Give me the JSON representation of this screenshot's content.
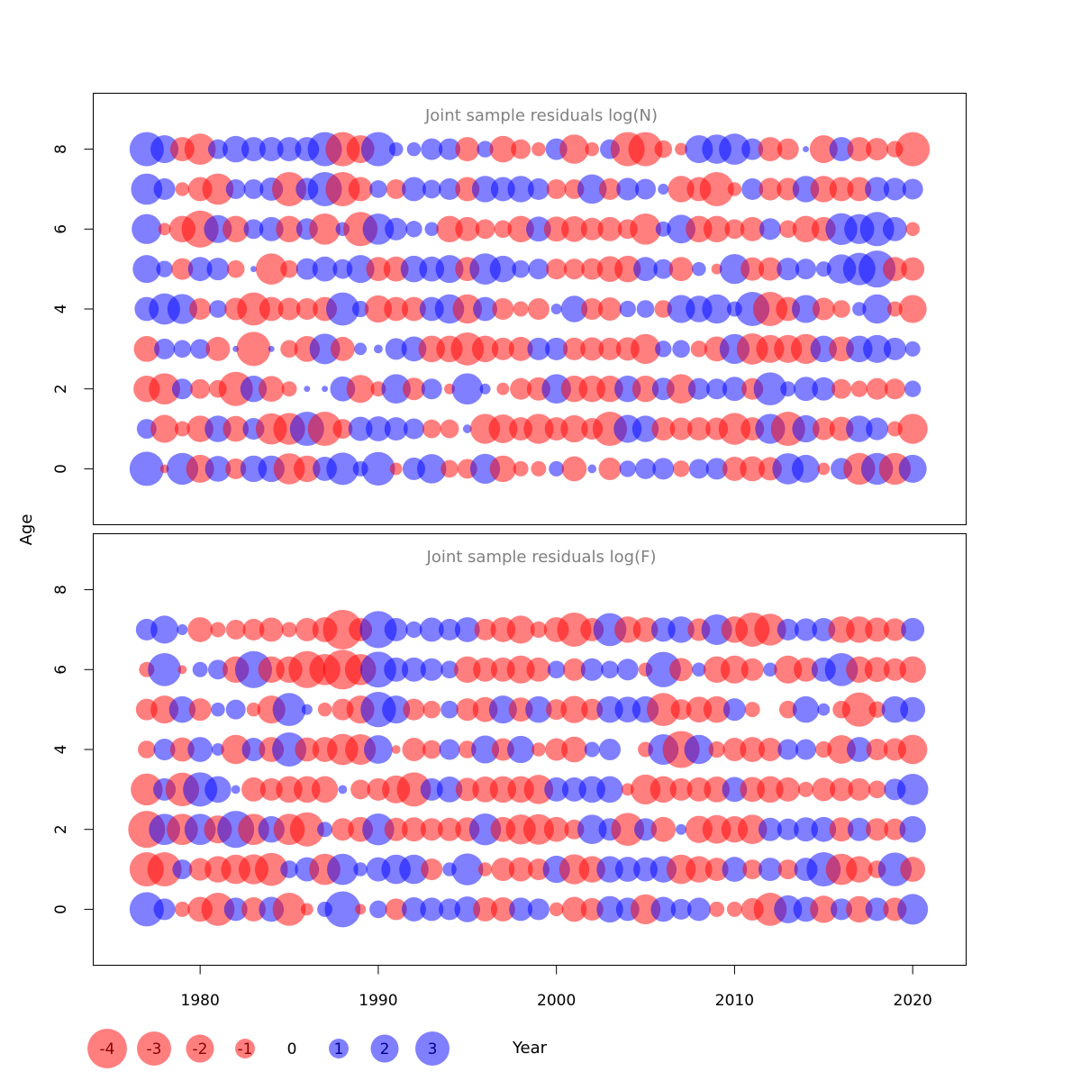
{
  "colors": {
    "negative": "#FF0000",
    "positive": "#0000FF",
    "bubble_alpha": 0.5,
    "title": "#808080"
  },
  "ylabel": "Age",
  "xlabel": "Year",
  "legend": {
    "values": [
      -4,
      -3,
      -2,
      -1,
      0,
      1,
      2,
      3
    ],
    "labels": [
      "-4",
      "-3",
      "-2",
      "-1",
      "0",
      "1",
      "2",
      "3"
    ]
  },
  "chart_data": [
    {
      "type": "scatter",
      "title": "Joint sample residuals log(N)",
      "xlabel": "Year",
      "ylabel": "Age",
      "xlim": [
        1974,
        2023
      ],
      "ylim": [
        -1.4,
        9.4
      ],
      "xticks": [
        1980,
        1990,
        2000,
        2010,
        2020
      ],
      "yticks": [
        0,
        2,
        4,
        6,
        8
      ],
      "years": [
        1977,
        1978,
        1979,
        1980,
        1981,
        1982,
        1983,
        1984,
        1985,
        1986,
        1987,
        1988,
        1989,
        1990,
        1991,
        1992,
        1993,
        1994,
        1995,
        1996,
        1997,
        1998,
        1999,
        2000,
        2001,
        2002,
        2003,
        2004,
        2005,
        2006,
        2007,
        2008,
        2009,
        2010,
        2011,
        2012,
        2013,
        2014,
        2015,
        2016,
        2017,
        2018,
        2019,
        2020
      ],
      "ages": [
        8,
        7,
        6,
        5,
        4,
        3,
        2,
        1,
        0
      ],
      "residuals": [
        [
          3,
          2.0,
          -1.5,
          -2.5,
          1.0,
          1.8,
          1.5,
          1.5,
          1.5,
          1.5,
          3,
          -3,
          -2,
          3,
          0.5,
          0.5,
          1.2,
          1.2,
          -1.5,
          0.7,
          -1.8,
          -1.0,
          -0.5,
          1.2,
          -2.2,
          -0.5,
          1.0,
          -3,
          -3,
          -0.8,
          -0.4,
          2.0,
          2.2,
          2.5,
          1.2,
          -1.5,
          -1.2,
          0.1,
          -2,
          1.5,
          -1.5,
          -1.3,
          -0.7,
          -3
        ],
        [
          2.5,
          1.2,
          -0.5,
          -1.5,
          -2.5,
          1.0,
          1.0,
          1.4,
          -3,
          1.3,
          3,
          -3,
          -1.5,
          0.8,
          -1.0,
          1.5,
          0.9,
          1.2,
          -1.5,
          1.8,
          1.5,
          1.8,
          1.2,
          -1.0,
          -1.0,
          2.2,
          -1.2,
          1.3,
          1.1,
          0.3,
          -1.8,
          -1.5,
          -3,
          -0.5,
          1.2,
          -1.3,
          -1.3,
          1.8,
          -1.8,
          -1.5,
          -1.5,
          1.5,
          1.3,
          1.1
        ],
        [
          2.3,
          -0.4,
          -1.8,
          -3.5,
          2.0,
          -1.8,
          1.0,
          1.5,
          -1.8,
          1.2,
          -2.5,
          0.5,
          -3,
          2.5,
          1.3,
          0.7,
          0.5,
          -1.8,
          -1.5,
          -1.0,
          -0.8,
          -1.8,
          1.6,
          -1.6,
          -1.7,
          -1.3,
          -1.5,
          -1.0,
          -2.5,
          0.6,
          2.1,
          -1.8,
          -1.8,
          -1.0,
          -1.5,
          1.2,
          -0.8,
          -1.8,
          -1.5,
          2.6,
          2.3,
          3,
          1.5,
          -0.5
        ],
        [
          2.0,
          0.7,
          -1.2,
          1.5,
          1.3,
          -0.8,
          0.1,
          -2.5,
          -0.8,
          1.2,
          1.6,
          1.0,
          2.0,
          -1.5,
          -1.6,
          1.8,
          1.6,
          2.0,
          -1.5,
          2.5,
          1.8,
          0.8,
          1.1,
          -1.1,
          -1.1,
          -1.2,
          -1.7,
          -1.8,
          1.5,
          1.0,
          -1.5,
          0.5,
          -0.3,
          2.3,
          -1.4,
          -1.4,
          1.3,
          1.1,
          0.6,
          2.2,
          2.7,
          3.5,
          -1.5,
          -1.4
        ],
        [
          1.5,
          2.5,
          2.3,
          -1.2,
          0.8,
          -1.3,
          -2.8,
          -1.5,
          -1.3,
          -1.2,
          -1.5,
          2.8,
          0.7,
          -1.9,
          -1.5,
          -1.5,
          1.5,
          2.2,
          -2.2,
          1.5,
          -1.2,
          -0.6,
          -1.2,
          0.3,
          1.8,
          -1.2,
          -1.4,
          0.7,
          0.8,
          -0.8,
          2.0,
          1.8,
          2.2,
          0.6,
          3,
          -3,
          -1.5,
          2.0,
          -1.3,
          -0.8,
          0.5,
          2.2,
          -0.6,
          -2.0
        ],
        [
          -1.7,
          1.1,
          0.8,
          1.0,
          -1.5,
          0.1,
          -3,
          0.1,
          -0.8,
          -1.7,
          2.4,
          -1.5,
          0.4,
          0.2,
          1.2,
          1.6,
          -1.8,
          -1.8,
          -2.8,
          -1.8,
          -1.3,
          -1.5,
          1.3,
          1.3,
          -1.3,
          -1.4,
          -1.3,
          -1.4,
          -2.3,
          0.7,
          0.8,
          -0.7,
          -1.6,
          2.3,
          -2.5,
          -2.0,
          -2.0,
          -2.3,
          1.8,
          -1.6,
          1.8,
          2.0,
          1.3,
          0.6
        ],
        [
          -1.8,
          -2.5,
          1.1,
          -1.0,
          -0.8,
          -3,
          1.8,
          -1.7,
          -0.6,
          0.1,
          0.1,
          1.6,
          -2.0,
          -0.6,
          2.2,
          -1.3,
          1.1,
          -0.3,
          2.5,
          0.3,
          -0.4,
          -1.2,
          -1.4,
          2.2,
          -1.8,
          -1.8,
          -1.8,
          1.8,
          -1.8,
          1.3,
          -2.2,
          1.2,
          1.1,
          1.5,
          -1.2,
          2.8,
          0.6,
          1.5,
          1.4,
          -1.0,
          -0.7,
          -1.2,
          -1.1,
          0.7
        ],
        [
          1.0,
          -2.0,
          -0.6,
          -1.8,
          1.8,
          -1.7,
          1.2,
          -2.5,
          -2.6,
          3,
          -3,
          -1.0,
          1.5,
          1.6,
          1.4,
          1.1,
          -0.9,
          -0.9,
          0.2,
          -2.3,
          -2.1,
          -1.4,
          -2.3,
          -1.4,
          -1.9,
          -1.2,
          -3,
          2.0,
          1.8,
          -1.4,
          -1.3,
          -1.4,
          -1.3,
          -2.6,
          -1.4,
          2.3,
          -3,
          1.9,
          -1.3,
          -1.5,
          1.8,
          1.3,
          -0.6,
          -2.3
        ],
        [
          3,
          -0.2,
          2.6,
          -2.0,
          1.7,
          -1.1,
          1.8,
          1.8,
          -2.5,
          -1.8,
          1.5,
          2.7,
          0.6,
          2.9,
          -0.4,
          1.3,
          2.2,
          -0.8,
          -1.0,
          2.3,
          -1.8,
          -0.6,
          -0.6,
          0.6,
          -1.6,
          0.2,
          -1.3,
          0.7,
          1.1,
          1.2,
          -0.7,
          1.0,
          1.2,
          -1.5,
          -1.6,
          -1.4,
          2.5,
          2.0,
          -0.4,
          1.2,
          -2.6,
          2.6,
          -2.6,
          2.0
        ]
      ]
    },
    {
      "type": "scatter",
      "title": "Joint sample residuals log(F)",
      "xlabel": "Year",
      "ylabel": "Age",
      "xlim": [
        1974,
        2023
      ],
      "ylim": [
        -1.4,
        9.4
      ],
      "xticks": [
        1980,
        1990,
        2000,
        2010,
        2020
      ],
      "yticks": [
        0,
        2,
        4,
        6,
        8
      ],
      "years": [
        1977,
        1978,
        1979,
        1980,
        1981,
        1982,
        1983,
        1984,
        1985,
        1986,
        1987,
        1988,
        1989,
        1990,
        1991,
        1992,
        1993,
        1994,
        1995,
        1996,
        1997,
        1998,
        1999,
        2000,
        2001,
        2002,
        2003,
        2004,
        2005,
        2006,
        2007,
        2008,
        2009,
        2010,
        2011,
        2012,
        2013,
        2014,
        2015,
        2016,
        2017,
        2018,
        2019,
        2020
      ],
      "ages": [
        7,
        6,
        5,
        4,
        3,
        2,
        1,
        0
      ],
      "residuals": [
        [
          1.2,
          2.0,
          0.3,
          -1.6,
          -0.6,
          -1.0,
          -1.2,
          -1.5,
          -0.6,
          -1.4,
          -1.6,
          -4,
          -1.4,
          3.5,
          1.4,
          0.7,
          1.5,
          1.2,
          1.6,
          -1.2,
          -1.6,
          -2.0,
          -0.7,
          -1.6,
          -3,
          -1.4,
          2.8,
          -1.8,
          -1.6,
          1.5,
          1.8,
          -1.3,
          2.4,
          -1.8,
          -3,
          -2.6,
          1.2,
          1.3,
          1.4,
          -1.8,
          -1.8,
          -1.5,
          -1.3,
          1.4
        ],
        [
          -0.6,
          2.8,
          -0.2,
          0.6,
          1.0,
          -1.8,
          3.5,
          -1.8,
          -1.8,
          -3.5,
          -2.5,
          -4,
          -2.5,
          3.3,
          1.5,
          1.5,
          1.3,
          0.8,
          -1.8,
          -1.5,
          -1.5,
          -2.0,
          -1.5,
          0.8,
          -1.3,
          1.3,
          0.8,
          1.2,
          -0.5,
          3.2,
          -1.4,
          0.5,
          -1.8,
          -2.0,
          -1.3,
          0.5,
          -2.0,
          -1.5,
          1.5,
          2.8,
          -1.8,
          -1.6,
          -1.3,
          -1.8
        ],
        [
          -1.2,
          -2.0,
          1.8,
          -1.3,
          0.5,
          1.0,
          -0.5,
          -2.0,
          2.8,
          0.3,
          -0.5,
          -1.2,
          -2.0,
          3.2,
          2.0,
          -1.2,
          -0.8,
          0.8,
          -1.3,
          -1.6,
          2.0,
          -1.5,
          1.8,
          -1.1,
          -1.9,
          -1.2,
          1.8,
          1.7,
          1.8,
          -2.8,
          -1.1,
          -1.7,
          -1.8,
          1.3,
          -0.6,
          0.0,
          -0.8,
          1.8,
          0.4,
          -0.8,
          -3,
          -0.7,
          1.8,
          1.6
        ],
        [
          -0.8,
          1.2,
          -1.5,
          1.6,
          0.4,
          -2.2,
          1.4,
          -1.6,
          3,
          -1.5,
          -1.6,
          -2.5,
          -2.4,
          2.1,
          -0.2,
          -1.4,
          -0.9,
          1.1,
          -0.8,
          2.0,
          -1.3,
          1.9,
          -0.5,
          -1.3,
          -1.7,
          0.6,
          1.2,
          0.0,
          -0.6,
          2.4,
          -3.5,
          2.2,
          -0.7,
          -1.4,
          -1.6,
          -1.4,
          1.1,
          1.1,
          -0.7,
          -2.1,
          1.6,
          -1.2,
          -1.3,
          -2.2
        ],
        [
          -2.6,
          1.3,
          -2.9,
          3,
          1.8,
          0.2,
          -1.5,
          -1.3,
          -1.8,
          -1.8,
          -1.8,
          0.2,
          -1.0,
          -1.3,
          -2.0,
          -3,
          1.3,
          1.7,
          -1.4,
          -1.7,
          -1.8,
          -1.8,
          -2.2,
          1.5,
          1.5,
          1.8,
          1.8,
          -0.4,
          -2.3,
          -1.8,
          -1.3,
          -1.5,
          -1.7,
          1.6,
          -1.6,
          -1.8,
          -1.5,
          -0.6,
          -1.4,
          -1.4,
          -1.3,
          -0.8,
          1.2,
          2.5
        ],
        [
          -3.5,
          2.5,
          -2.5,
          2.5,
          -2.0,
          3.5,
          -2.5,
          1.8,
          -2.5,
          -3,
          0.6,
          -1.3,
          -1.6,
          2.6,
          -1.4,
          -1.5,
          -1.3,
          -1.4,
          -1.5,
          2.6,
          -1.6,
          -2.3,
          -2.4,
          -1.6,
          -1.0,
          2.2,
          1.3,
          -2.8,
          1.3,
          -1.6,
          0.3,
          -1.9,
          -2.1,
          -1.8,
          -2.2,
          1.4,
          1.2,
          1.5,
          1.6,
          -1.5,
          1.4,
          -1.3,
          -1.2,
          1.8
        ],
        [
          -3,
          -3,
          1.0,
          -1.3,
          -1.8,
          -2.2,
          -2.3,
          -2.8,
          0.8,
          1.5,
          -2.5,
          2.5,
          0.5,
          1.5,
          2.2,
          2.2,
          -1.2,
          0.5,
          2.6,
          -0.5,
          -1.4,
          -1.5,
          -1.2,
          1.9,
          -2.3,
          -1.8,
          1.8,
          1.6,
          1.5,
          1.8,
          -2.2,
          -1.8,
          -1.4,
          1.6,
          -1.0,
          1.4,
          -1.0,
          1.4,
          3,
          -2.5,
          -1.8,
          -0.8,
          2.9,
          -1.6
        ],
        [
          3,
          1.2,
          -0.6,
          -1.6,
          -2.8,
          1.4,
          -1.5,
          1.6,
          -2.8,
          -0.4,
          0.6,
          3.3,
          -0.3,
          0.8,
          -1.2,
          1.5,
          1.4,
          1.2,
          1.7,
          -1.5,
          -1.5,
          1.4,
          1.2,
          -0.5,
          -1.6,
          -1.3,
          1.8,
          1.4,
          -2.3,
          1.6,
          1.1,
          1.4,
          -0.6,
          -0.6,
          -1.3,
          -2.8,
          2.0,
          1.6,
          -1.9,
          1.2,
          -1.8,
          1.4,
          -1.4,
          2.4
        ]
      ]
    }
  ]
}
